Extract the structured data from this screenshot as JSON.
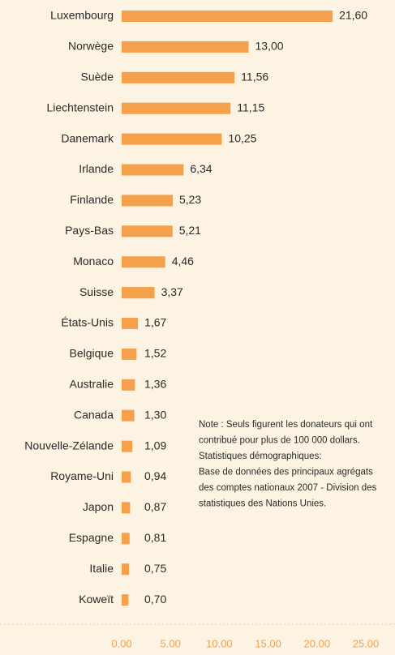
{
  "chart_data": {
    "type": "barh",
    "categories": [
      "Luxembourg",
      "Norwège",
      "Suède",
      "Liechtenstein",
      "Danemark",
      "Irlande",
      "Finlande",
      "Pays-Bas",
      "Monaco",
      "Suisse",
      "États-Unis",
      "Belgique",
      "Australie",
      "Canada",
      "Nouvelle-Zélande",
      "Royame-Uni",
      "Japon",
      "Espagne",
      "Italie",
      "Koweït"
    ],
    "values": [
      21.6,
      13.0,
      11.56,
      11.15,
      10.25,
      6.34,
      5.23,
      5.21,
      4.46,
      3.37,
      1.67,
      1.52,
      1.36,
      1.3,
      1.09,
      0.94,
      0.87,
      0.81,
      0.75,
      0.7
    ],
    "value_labels": [
      "21,60",
      "13,00",
      "11,56",
      "11,15",
      "10,25",
      "6,34",
      "5,23",
      "5,21",
      "4,46",
      "3,37",
      "1,67",
      "1,52",
      "1,36",
      "1,30",
      "1,09",
      "0,94",
      "0,87",
      "0,81",
      "0,75",
      "0,70"
    ],
    "color": "#f5a04a",
    "xlim": [
      0,
      25
    ],
    "xticks": [
      {
        "value": 0,
        "label": "0.00"
      },
      {
        "value": 5,
        "label": "5.00"
      },
      {
        "value": 10,
        "label": "10.00"
      },
      {
        "value": 15,
        "label": "15.00"
      },
      {
        "value": 20,
        "label": "20.00"
      },
      {
        "value": 25,
        "label": "25.00"
      }
    ],
    "annotation": [
      "Note : Seuls figurent les donateurs qui ont",
      "contribué pour plus de 100 000 dollars.",
      "Statistiques démographiques:",
      "Base de données des principaux agrégats",
      "des comptes nationaux 2007 - Division des",
      "statistiques des Nations Unies."
    ]
  }
}
